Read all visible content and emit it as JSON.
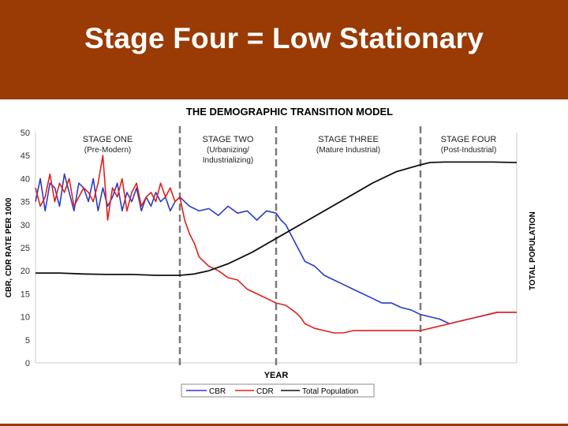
{
  "slide": {
    "title": "Stage Four = Low Stationary"
  },
  "colors": {
    "header": "#9a3a04",
    "cbr": "#2b3cc4",
    "cdr": "#e0201b",
    "population": "#111111",
    "divider": "#7a7a7a"
  },
  "chart_data": {
    "type": "line",
    "title": "THE DEMOGRAPHIC TRANSITION MODEL",
    "xlabel": "YEAR",
    "ylabel": "CBR, CDR RATE PER 1000",
    "ylabel_right": "TOTAL POPULATION",
    "ylim": [
      0,
      50
    ],
    "yticks": [
      0,
      5,
      10,
      15,
      20,
      25,
      30,
      35,
      40,
      45,
      50
    ],
    "x_range": [
      0,
      100
    ],
    "stage_boundaries": [
      30,
      50,
      80
    ],
    "stages": [
      {
        "name": "STAGE ONE",
        "sub": [
          "(Pre-Modern)"
        ]
      },
      {
        "name": "STAGE TWO",
        "sub": [
          "(Urbanizing/",
          "Industrializing)"
        ]
      },
      {
        "name": "STAGE THREE",
        "sub": [
          "(Mature Industrial)"
        ]
      },
      {
        "name": "STAGE FOUR",
        "sub": [
          "(Post-Industrial)"
        ]
      }
    ],
    "legend_position": "bottom-center",
    "series": [
      {
        "name": "CBR",
        "x": [
          0,
          1,
          2,
          3,
          4,
          5,
          6,
          7,
          8,
          9,
          10,
          11,
          12,
          13,
          14,
          15,
          16,
          17,
          18,
          19,
          20,
          21,
          22,
          23,
          24,
          25,
          26,
          27,
          28,
          29,
          30,
          32,
          34,
          36,
          38,
          40,
          42,
          44,
          46,
          48,
          50,
          51,
          52,
          53,
          54,
          55,
          56,
          57,
          58,
          59,
          60,
          62,
          64,
          66,
          68,
          70,
          72,
          74,
          76,
          78,
          80,
          82,
          84,
          85,
          86,
          88,
          90,
          92,
          94,
          96,
          98,
          100
        ],
        "values": [
          35,
          40,
          33,
          39,
          38,
          34,
          41,
          37,
          33,
          39,
          38,
          35,
          40,
          33,
          38,
          34,
          36,
          39,
          33,
          37,
          35,
          38,
          33,
          36,
          34,
          37,
          35,
          36,
          33,
          35,
          36,
          34,
          33,
          33.5,
          32,
          34,
          32.5,
          33,
          31,
          33,
          32.5,
          31,
          30,
          28,
          26,
          24,
          22,
          21.5,
          21,
          20,
          19,
          18,
          17,
          16,
          15,
          14,
          13,
          13,
          12,
          11.5,
          10.5,
          10,
          9.5,
          9,
          8.5,
          9,
          9.5,
          10,
          10.5,
          11,
          11,
          11
        ]
      },
      {
        "name": "CDR",
        "x": [
          0,
          1,
          2,
          3,
          4,
          5,
          6,
          7,
          8,
          9,
          10,
          11,
          12,
          13,
          14,
          15,
          16,
          17,
          18,
          19,
          20,
          21,
          22,
          23,
          24,
          25,
          26,
          27,
          28,
          29,
          30,
          31,
          32,
          33,
          34,
          36,
          38,
          40,
          42,
          44,
          46,
          48,
          50,
          52,
          54,
          55,
          56,
          58,
          60,
          62,
          64,
          66,
          68,
          70,
          72,
          74,
          76,
          78,
          80,
          82,
          84,
          86,
          88,
          90,
          92,
          94,
          96,
          98,
          100
        ],
        "values": [
          38,
          34,
          36,
          41,
          35,
          39,
          37,
          40,
          34,
          36,
          38,
          37,
          35,
          39,
          45,
          31,
          38,
          36,
          40,
          33,
          37,
          39,
          34,
          36,
          37,
          35,
          39,
          36,
          38,
          35,
          36,
          31,
          28,
          26,
          23,
          21,
          20,
          18.5,
          18,
          16,
          15,
          14,
          13,
          12.5,
          11,
          10,
          8.5,
          7.5,
          7,
          6.5,
          6.5,
          7,
          7,
          7,
          7,
          7,
          7,
          7,
          7,
          7.5,
          8,
          8.5,
          9,
          9.5,
          10,
          10.5,
          11,
          11,
          11
        ]
      },
      {
        "name": "Total Population",
        "x": [
          0,
          5,
          10,
          15,
          20,
          25,
          30,
          33,
          36,
          40,
          45,
          50,
          55,
          60,
          65,
          70,
          75,
          80,
          82,
          85,
          90,
          95,
          100
        ],
        "values": [
          19.5,
          19.5,
          19.3,
          19.2,
          19.2,
          19,
          19,
          19.3,
          20,
          21.5,
          24,
          27,
          30,
          33,
          36,
          39,
          41.5,
          43,
          43.5,
          43.6,
          43.6,
          43.6,
          43.5
        ]
      }
    ]
  }
}
